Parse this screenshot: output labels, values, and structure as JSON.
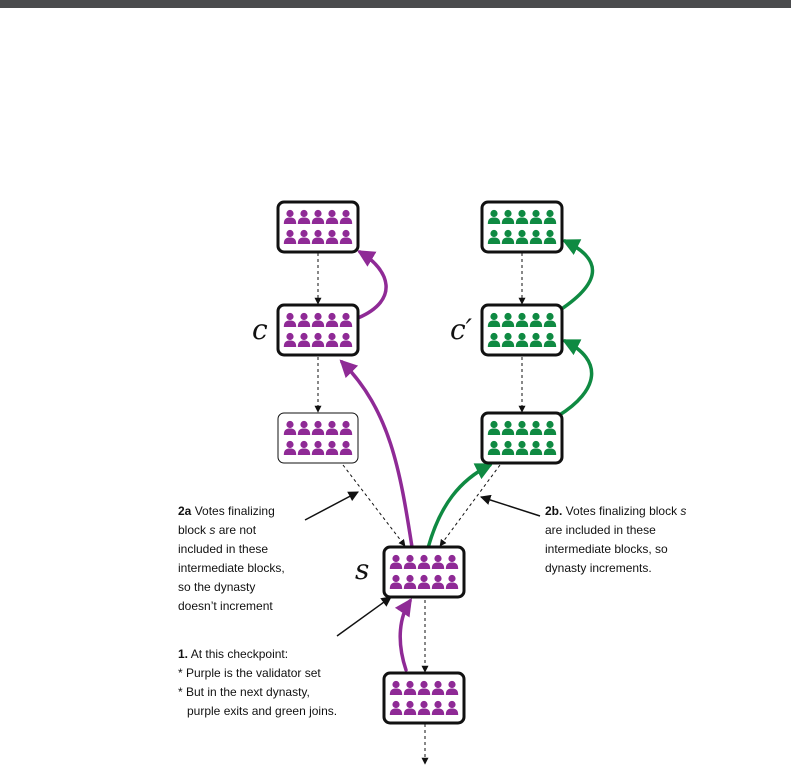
{
  "labels": {
    "c": "c",
    "c_prime": "c′",
    "s": "s"
  },
  "notes": {
    "note_2a": {
      "num": "2a",
      "line1": " Votes finalizing",
      "line2_pre": "block ",
      "line2_em": "s",
      "line2_post": " are not",
      "line3": "included in these",
      "line4": "intermediate blocks,",
      "line5": "so the dynasty",
      "line6": "doesn’t increment"
    },
    "note_2b": {
      "num": "2b.",
      "line1_pre": " Votes finalizing block ",
      "line1_em": "s",
      "line2": "are included in these",
      "line3": "intermediate blocks, so",
      "line4": "dynasty increments."
    },
    "note_1": {
      "num": "1.",
      "line1": " At this checkpoint:",
      "line2": "* Purple is the validator set",
      "line3": "* But in the next dynasty,",
      "line4": "purple exits and green joins."
    }
  },
  "colors": {
    "purple": "#8f2a96",
    "green": "#0f8a42",
    "text": "#111111"
  }
}
